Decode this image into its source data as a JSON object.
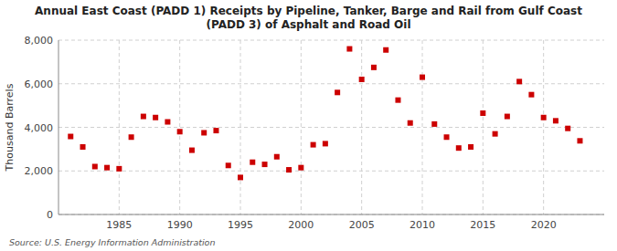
{
  "chart_data": {
    "type": "scatter",
    "title": "Annual East Coast (PADD 1) Receipts by Pipeline, Tanker, Barge and Rail from Gulf Coast\n(PADD 3) of Asphalt and Road Oil",
    "y_label": "Thousand Barrels",
    "annotations": [
      "Source: U.S. Energy Information Administration"
    ],
    "x": [
      1981,
      1982,
      1983,
      1984,
      1985,
      1986,
      1987,
      1988,
      1989,
      1990,
      1991,
      1992,
      1993,
      1994,
      1995,
      1996,
      1997,
      1998,
      1999,
      2000,
      2001,
      2002,
      2003,
      2004,
      2005,
      2006,
      2007,
      2008,
      2009,
      2010,
      2011,
      2012,
      2013,
      2014,
      2015,
      2016,
      2017,
      2018,
      2019,
      2020,
      2021,
      2022,
      2023
    ],
    "values": [
      3580,
      3100,
      2200,
      2150,
      2100,
      3550,
      4500,
      4450,
      4250,
      3800,
      2950,
      3750,
      3850,
      2250,
      1700,
      2400,
      2300,
      2650,
      2050,
      2150,
      3200,
      3250,
      5600,
      7600,
      6200,
      6750,
      7550,
      5250,
      4200,
      6300,
      4150,
      3550,
      3050,
      3100,
      4650,
      3700,
      4500,
      6100,
      5500,
      4450,
      4300,
      3950,
      3380
    ],
    "color": "#cc0000",
    "marker": "square",
    "xlim": [
      1980,
      2025
    ],
    "xticks": [
      1985,
      1990,
      1995,
      2000,
      2005,
      2010,
      2015,
      2020
    ],
    "ylim": [
      0,
      8000
    ],
    "yticks": [
      0,
      {
        "value": 2000,
        "label": "2,000"
      },
      {
        "value": 4000,
        "label": "4,000"
      },
      {
        "value": 6000,
        "label": "6,000"
      },
      {
        "value": 8000,
        "label": "8,000"
      }
    ],
    "grid": true
  }
}
